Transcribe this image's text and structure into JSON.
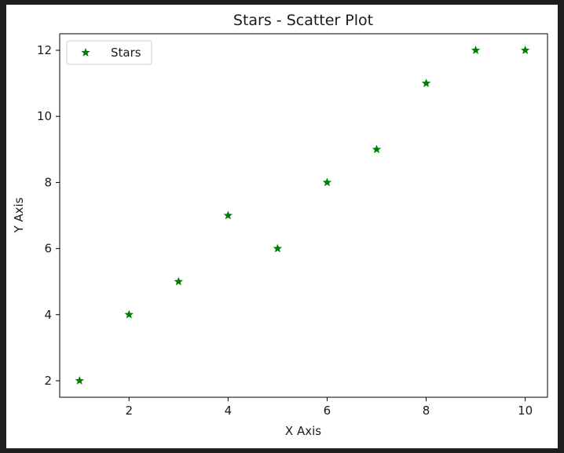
{
  "chart_data": {
    "type": "scatter",
    "title": "Stars - Scatter Plot",
    "xlabel": "X Axis",
    "ylabel": "Y Axis",
    "xlim": [
      0.6,
      10.45
    ],
    "ylim": [
      1.5,
      12.5
    ],
    "xticks": [
      2,
      4,
      6,
      8,
      10
    ],
    "yticks": [
      2,
      4,
      6,
      8,
      10,
      12
    ],
    "grid": false,
    "legend_position": "top-left",
    "series": [
      {
        "name": "Stars",
        "marker": "star",
        "color": "#008000",
        "x": [
          1,
          2,
          3,
          4,
          5,
          6,
          7,
          8,
          9,
          10
        ],
        "y": [
          2,
          4,
          5,
          7,
          6,
          8,
          9,
          11,
          12,
          12
        ]
      }
    ]
  }
}
